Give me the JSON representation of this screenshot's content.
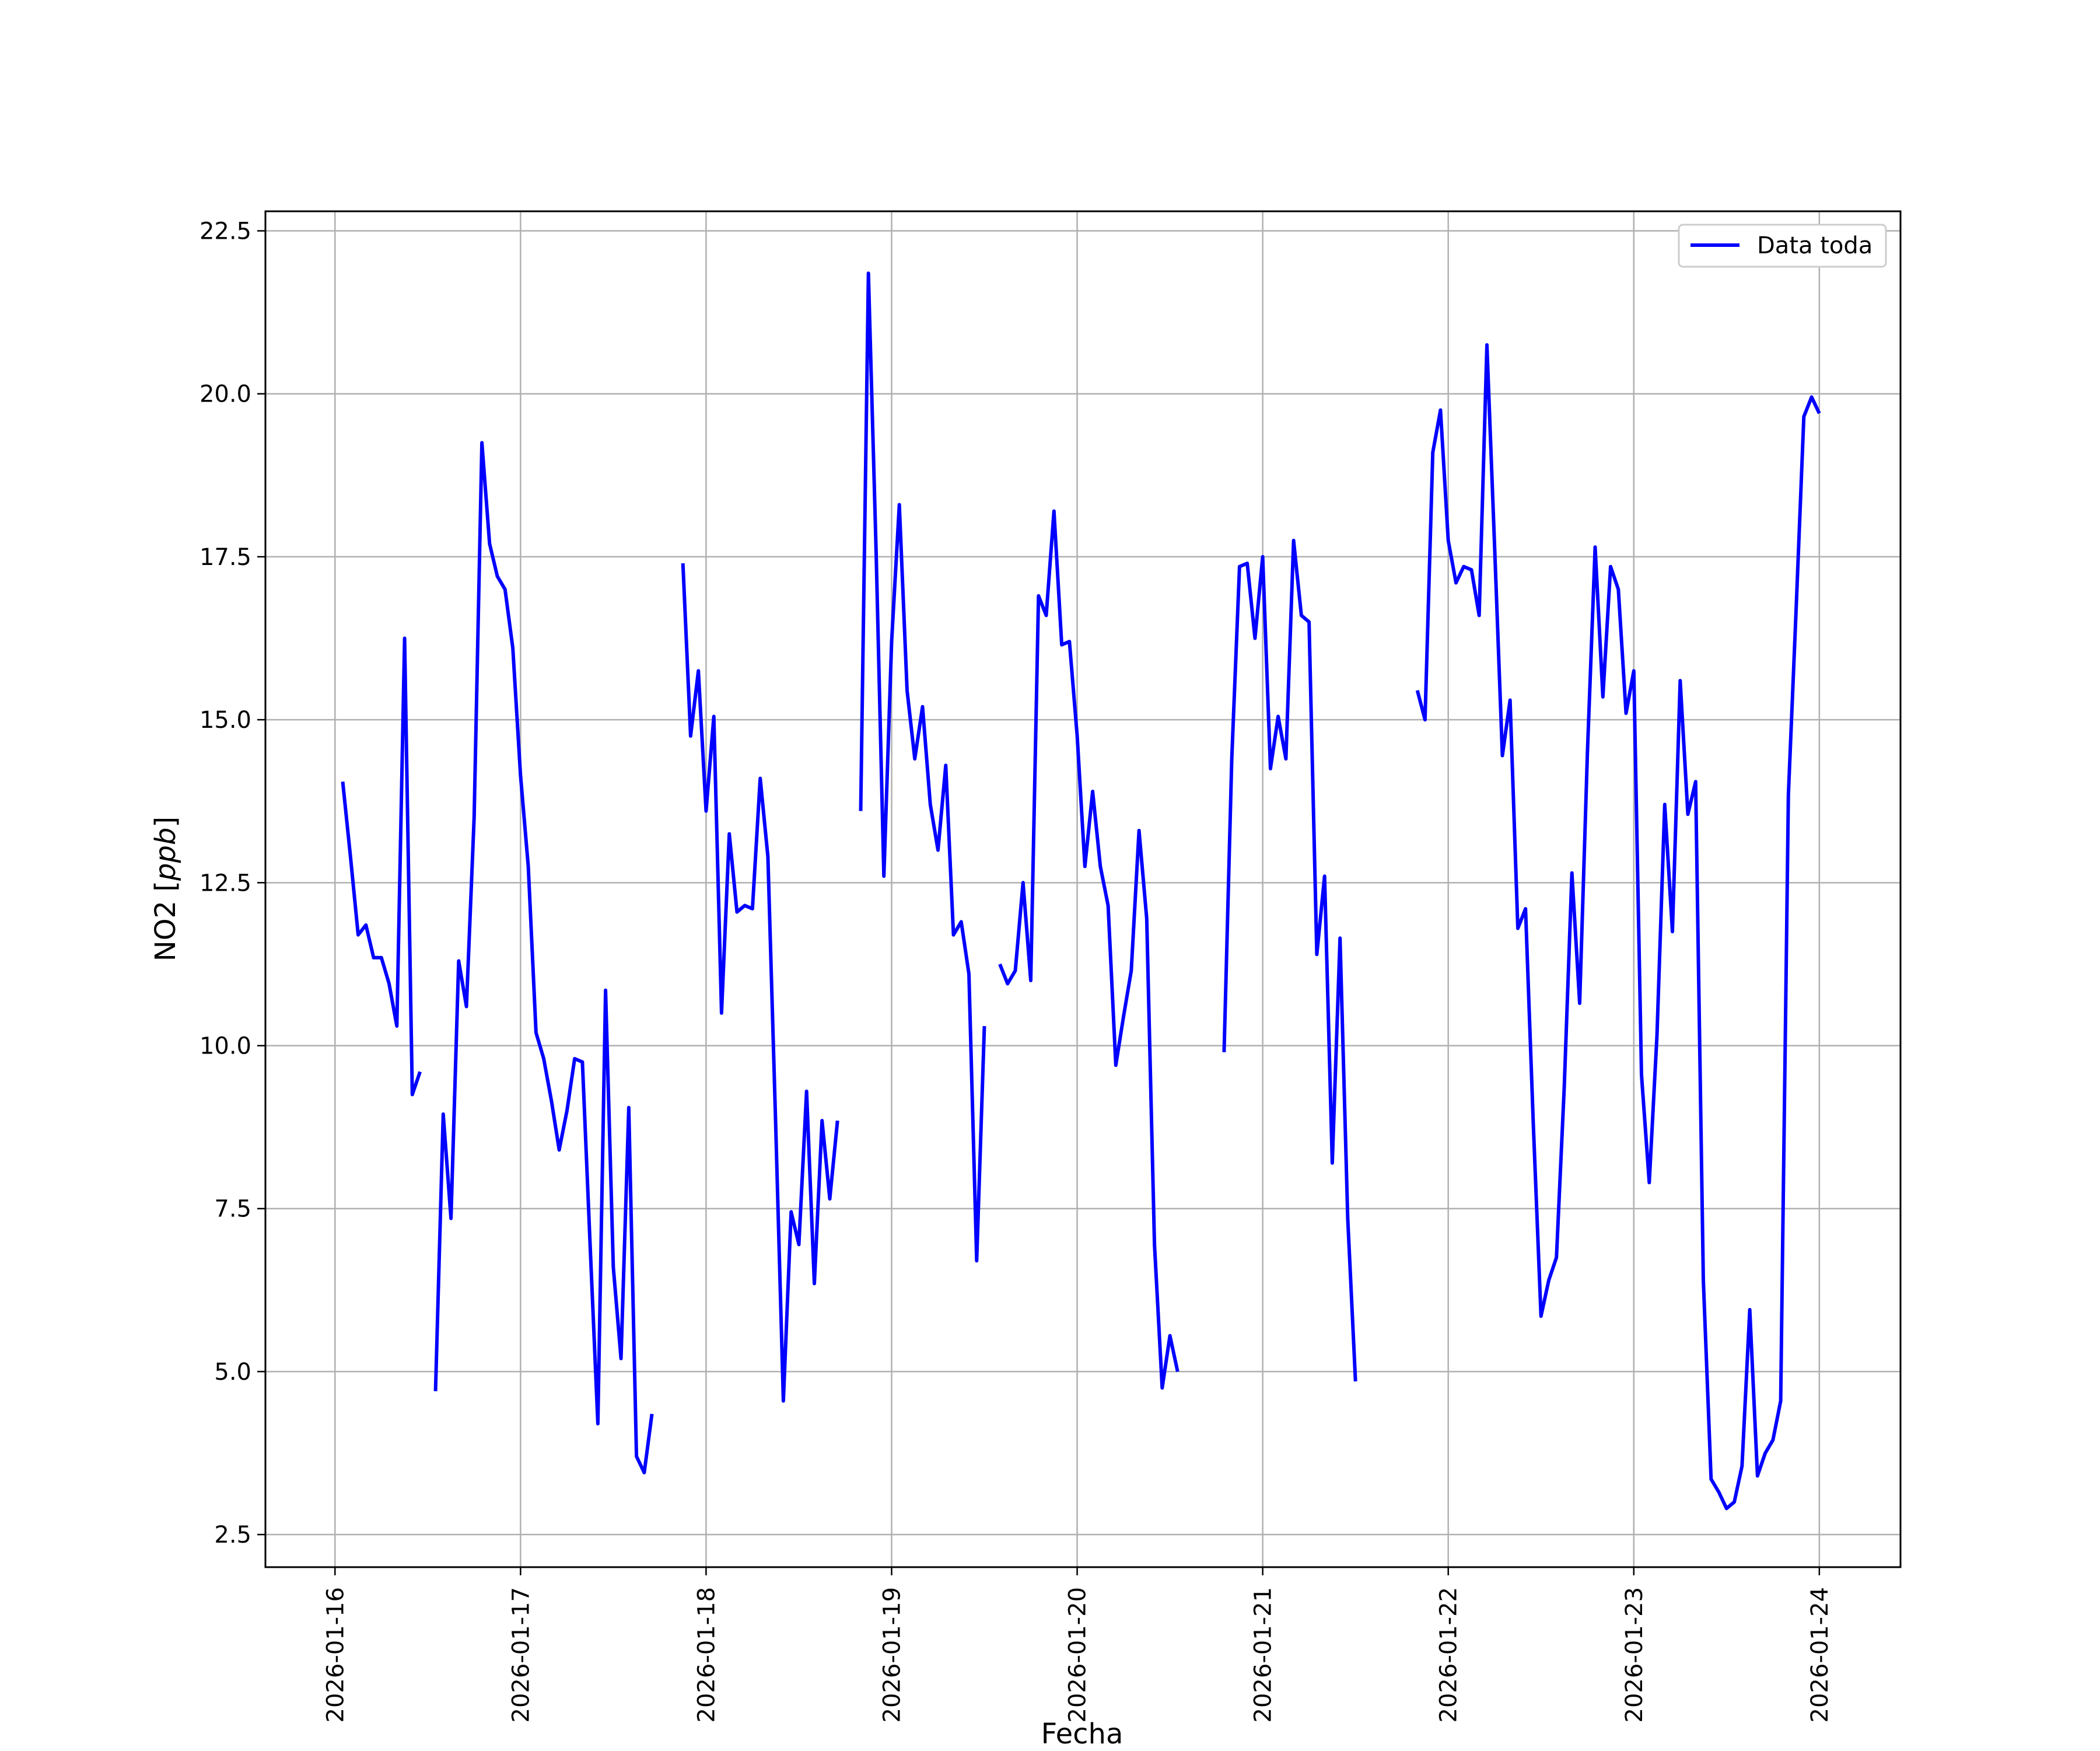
{
  "chart_data": {
    "type": "line",
    "title": "",
    "xlabel": "Fecha",
    "ylabel_prefix": "NO2 [",
    "ylabel_italic": "ppb",
    "ylabel_suffix": "]",
    "ylim": [
      2.0,
      22.8
    ],
    "y_ticks": [
      2.5,
      5.0,
      7.5,
      10.0,
      12.5,
      15.0,
      17.5,
      20.0,
      22.5
    ],
    "xlim": [
      "2026-01-15 15:00",
      "2026-01-24 10:30"
    ],
    "x_ticks": [
      "2026-01-16",
      "2026-01-17",
      "2026-01-18",
      "2026-01-19",
      "2026-01-20",
      "2026-01-21",
      "2026-01-22",
      "2026-01-23",
      "2026-01-24"
    ],
    "grid": true,
    "legend": {
      "position": "upper right",
      "entries": [
        "Data toda"
      ]
    },
    "series": [
      {
        "name": "Data toda",
        "color": "#0000ff",
        "segments": [
          [
            [
              "2026-01-16 01:00",
              14.05
            ],
            [
              "2026-01-16 02:00",
              12.9
            ],
            [
              "2026-01-16 03:00",
              11.7
            ],
            [
              "2026-01-16 04:00",
              11.85
            ],
            [
              "2026-01-16 05:00",
              11.35
            ],
            [
              "2026-01-16 06:00",
              11.35
            ],
            [
              "2026-01-16 07:00",
              10.95
            ],
            [
              "2026-01-16 08:00",
              10.3
            ],
            [
              "2026-01-16 09:00",
              16.25
            ],
            [
              "2026-01-16 10:00",
              9.25
            ],
            [
              "2026-01-16 11:00",
              9.6
            ]
          ],
          [
            [
              "2026-01-16 13:00",
              4.7
            ],
            [
              "2026-01-16 14:00",
              8.95
            ],
            [
              "2026-01-16 15:00",
              7.35
            ],
            [
              "2026-01-16 16:00",
              11.3
            ],
            [
              "2026-01-16 17:00",
              10.6
            ],
            [
              "2026-01-16 18:00",
              13.5
            ],
            [
              "2026-01-16 19:00",
              19.25
            ],
            [
              "2026-01-16 20:00",
              17.7
            ],
            [
              "2026-01-16 21:00",
              17.2
            ],
            [
              "2026-01-16 22:00",
              17.0
            ],
            [
              "2026-01-16 23:00",
              16.1
            ],
            [
              "2026-01-17 00:00",
              14.15
            ],
            [
              "2026-01-17 01:00",
              12.75
            ],
            [
              "2026-01-17 02:00",
              10.2
            ],
            [
              "2026-01-17 03:00",
              9.8
            ],
            [
              "2026-01-17 04:00",
              9.15
            ],
            [
              "2026-01-17 05:00",
              8.4
            ],
            [
              "2026-01-17 06:00",
              9.0
            ],
            [
              "2026-01-17 07:00",
              9.8
            ],
            [
              "2026-01-17 08:00",
              9.75
            ],
            [
              "2026-01-17 09:00",
              6.95
            ],
            [
              "2026-01-17 10:00",
              4.2
            ],
            [
              "2026-01-17 11:00",
              10.85
            ],
            [
              "2026-01-17 12:00",
              6.6
            ],
            [
              "2026-01-17 13:00",
              5.2
            ],
            [
              "2026-01-17 14:00",
              9.05
            ],
            [
              "2026-01-17 15:00",
              3.7
            ],
            [
              "2026-01-17 16:00",
              3.45
            ],
            [
              "2026-01-17 17:00",
              4.35
            ]
          ],
          [
            [
              "2026-01-17 21:00",
              17.4
            ],
            [
              "2026-01-17 22:00",
              14.75
            ],
            [
              "2026-01-17 23:00",
              15.75
            ],
            [
              "2026-01-18 00:00",
              13.6
            ],
            [
              "2026-01-18 01:00",
              15.05
            ],
            [
              "2026-01-18 02:00",
              10.5
            ],
            [
              "2026-01-18 03:00",
              13.25
            ],
            [
              "2026-01-18 04:00",
              12.05
            ],
            [
              "2026-01-18 05:00",
              12.15
            ],
            [
              "2026-01-18 06:00",
              12.1
            ],
            [
              "2026-01-18 07:00",
              14.1
            ],
            [
              "2026-01-18 08:00",
              12.9
            ],
            [
              "2026-01-18 09:00",
              8.8
            ],
            [
              "2026-01-18 10:00",
              4.55
            ],
            [
              "2026-01-18 11:00",
              7.45
            ],
            [
              "2026-01-18 12:00",
              6.95
            ],
            [
              "2026-01-18 13:00",
              9.3
            ],
            [
              "2026-01-18 14:00",
              6.35
            ],
            [
              "2026-01-18 15:00",
              8.85
            ],
            [
              "2026-01-18 16:00",
              7.65
            ],
            [
              "2026-01-18 17:00",
              8.85
            ]
          ],
          [
            [
              "2026-01-18 20:00",
              13.6
            ],
            [
              "2026-01-18 21:00",
              21.85
            ],
            [
              "2026-01-18 22:00",
              17.55
            ],
            [
              "2026-01-18 23:00",
              12.6
            ],
            [
              "2026-01-19 00:00",
              16.2
            ],
            [
              "2026-01-19 01:00",
              18.3
            ],
            [
              "2026-01-19 02:00",
              15.45
            ],
            [
              "2026-01-19 03:00",
              14.4
            ],
            [
              "2026-01-19 04:00",
              15.2
            ],
            [
              "2026-01-19 05:00",
              13.7
            ],
            [
              "2026-01-19 06:00",
              13.0
            ],
            [
              "2026-01-19 07:00",
              14.3
            ],
            [
              "2026-01-19 08:00",
              11.7
            ],
            [
              "2026-01-19 09:00",
              11.9
            ],
            [
              "2026-01-19 10:00",
              11.1
            ],
            [
              "2026-01-19 11:00",
              6.7
            ],
            [
              "2026-01-19 12:00",
              10.3
            ]
          ],
          [
            [
              "2026-01-19 14:00",
              11.25
            ],
            [
              "2026-01-19 15:00",
              10.95
            ],
            [
              "2026-01-19 16:00",
              11.15
            ],
            [
              "2026-01-19 17:00",
              12.5
            ],
            [
              "2026-01-19 18:00",
              11.0
            ],
            [
              "2026-01-19 19:00",
              16.9
            ],
            [
              "2026-01-19 20:00",
              16.6
            ],
            [
              "2026-01-19 21:00",
              18.2
            ],
            [
              "2026-01-19 22:00",
              16.15
            ],
            [
              "2026-01-19 23:00",
              16.2
            ],
            [
              "2026-01-20 00:00",
              14.75
            ],
            [
              "2026-01-20 01:00",
              12.75
            ],
            [
              "2026-01-20 02:00",
              13.9
            ],
            [
              "2026-01-20 03:00",
              12.75
            ],
            [
              "2026-01-20 04:00",
              12.15
            ],
            [
              "2026-01-20 05:00",
              9.7
            ],
            [
              "2026-01-20 06:00",
              10.45
            ],
            [
              "2026-01-20 07:00",
              11.15
            ],
            [
              "2026-01-20 08:00",
              13.3
            ],
            [
              "2026-01-20 09:00",
              11.95
            ],
            [
              "2026-01-20 10:00",
              6.95
            ],
            [
              "2026-01-20 11:00",
              4.75
            ],
            [
              "2026-01-20 12:00",
              5.55
            ],
            [
              "2026-01-20 13:00",
              5.0
            ]
          ],
          [
            [
              "2026-01-20 19:00",
              9.9
            ],
            [
              "2026-01-20 20:00",
              14.4
            ],
            [
              "2026-01-20 21:00",
              17.35
            ],
            [
              "2026-01-20 22:00",
              17.4
            ],
            [
              "2026-01-20 23:00",
              16.25
            ],
            [
              "2026-01-21 00:00",
              17.5
            ],
            [
              "2026-01-21 01:00",
              14.25
            ],
            [
              "2026-01-21 02:00",
              15.05
            ],
            [
              "2026-01-21 03:00",
              14.4
            ],
            [
              "2026-01-21 04:00",
              17.75
            ],
            [
              "2026-01-21 05:00",
              16.6
            ],
            [
              "2026-01-21 06:00",
              16.5
            ],
            [
              "2026-01-21 07:00",
              11.4
            ],
            [
              "2026-01-21 08:00",
              12.6
            ],
            [
              "2026-01-21 09:00",
              8.2
            ],
            [
              "2026-01-21 10:00",
              11.65
            ],
            [
              "2026-01-21 11:00",
              7.35
            ],
            [
              "2026-01-21 12:00",
              4.85
            ]
          ],
          [
            [
              "2026-01-21 20:00",
              15.45
            ],
            [
              "2026-01-21 21:00",
              15.0
            ],
            [
              "2026-01-21 22:00",
              19.1
            ],
            [
              "2026-01-21 23:00",
              19.75
            ],
            [
              "2026-01-22 00:00",
              17.75
            ],
            [
              "2026-01-22 01:00",
              17.1
            ],
            [
              "2026-01-22 02:00",
              17.35
            ],
            [
              "2026-01-22 03:00",
              17.3
            ],
            [
              "2026-01-22 04:00",
              16.6
            ],
            [
              "2026-01-22 05:00",
              20.75
            ],
            [
              "2026-01-22 06:00",
              17.65
            ],
            [
              "2026-01-22 07:00",
              14.45
            ],
            [
              "2026-01-22 08:00",
              15.3
            ],
            [
              "2026-01-22 09:00",
              11.8
            ],
            [
              "2026-01-22 10:00",
              12.1
            ],
            [
              "2026-01-22 11:00",
              8.8
            ],
            [
              "2026-01-22 12:00",
              5.85
            ],
            [
              "2026-01-22 13:00",
              6.4
            ],
            [
              "2026-01-22 14:00",
              6.75
            ],
            [
              "2026-01-22 15:00",
              9.35
            ],
            [
              "2026-01-22 16:00",
              12.65
            ],
            [
              "2026-01-22 17:00",
              10.65
            ],
            [
              "2026-01-22 18:00",
              14.5
            ],
            [
              "2026-01-22 19:00",
              17.65
            ],
            [
              "2026-01-22 20:00",
              15.35
            ],
            [
              "2026-01-22 21:00",
              17.35
            ],
            [
              "2026-01-22 22:00",
              17.0
            ],
            [
              "2026-01-22 23:00",
              15.1
            ],
            [
              "2026-01-23 00:00",
              15.75
            ],
            [
              "2026-01-23 01:00",
              9.55
            ],
            [
              "2026-01-23 02:00",
              7.9
            ],
            [
              "2026-01-23 03:00",
              10.15
            ],
            [
              "2026-01-23 04:00",
              13.7
            ],
            [
              "2026-01-23 05:00",
              11.75
            ],
            [
              "2026-01-23 06:00",
              15.6
            ],
            [
              "2026-01-23 07:00",
              13.55
            ],
            [
              "2026-01-23 08:00",
              14.05
            ],
            [
              "2026-01-23 09:00",
              6.4
            ],
            [
              "2026-01-23 10:00",
              3.35
            ],
            [
              "2026-01-23 11:00",
              3.15
            ],
            [
              "2026-01-23 12:00",
              2.9
            ],
            [
              "2026-01-23 13:00",
              3.0
            ],
            [
              "2026-01-23 14:00",
              3.55
            ],
            [
              "2026-01-23 15:00",
              5.95
            ],
            [
              "2026-01-23 16:00",
              3.4
            ],
            [
              "2026-01-23 17:00",
              3.75
            ],
            [
              "2026-01-23 18:00",
              3.95
            ],
            [
              "2026-01-23 19:00",
              4.55
            ],
            [
              "2026-01-23 20:00",
              13.85
            ],
            [
              "2026-01-23 21:00",
              16.7
            ],
            [
              "2026-01-23 22:00",
              19.65
            ],
            [
              "2026-01-23 23:00",
              19.95
            ],
            [
              "2026-01-24 00:00",
              19.7
            ]
          ]
        ]
      }
    ]
  }
}
